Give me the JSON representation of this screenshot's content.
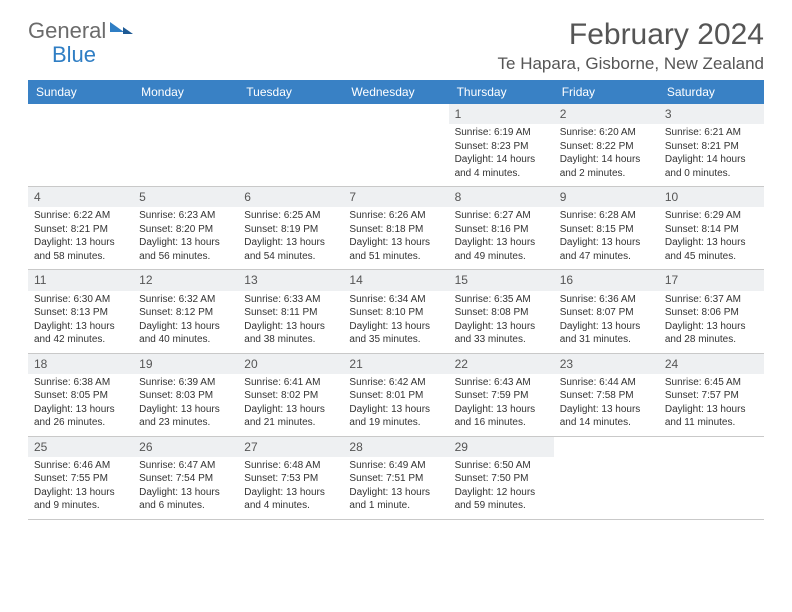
{
  "logo": {
    "first": "General",
    "second": "Blue"
  },
  "title": "February 2024",
  "location": "Te Hapara, Gisborne, New Zealand",
  "weekdays": [
    "Sunday",
    "Monday",
    "Tuesday",
    "Wednesday",
    "Thursday",
    "Friday",
    "Saturday"
  ],
  "colors": {
    "header_bg": "#3981c5",
    "header_text": "#ffffff",
    "daynum_bg": "#eef0f2",
    "border": "#c9c9c9",
    "logo_gray": "#6b6b6b",
    "logo_blue": "#2f7ec4"
  },
  "cells": [
    {
      "empty": true
    },
    {
      "empty": true
    },
    {
      "empty": true
    },
    {
      "empty": true
    },
    {
      "day": "1",
      "sunrise": "Sunrise: 6:19 AM",
      "sunset": "Sunset: 8:23 PM",
      "daylight": "Daylight: 14 hours and 4 minutes."
    },
    {
      "day": "2",
      "sunrise": "Sunrise: 6:20 AM",
      "sunset": "Sunset: 8:22 PM",
      "daylight": "Daylight: 14 hours and 2 minutes."
    },
    {
      "day": "3",
      "sunrise": "Sunrise: 6:21 AM",
      "sunset": "Sunset: 8:21 PM",
      "daylight": "Daylight: 14 hours and 0 minutes."
    },
    {
      "day": "4",
      "sunrise": "Sunrise: 6:22 AM",
      "sunset": "Sunset: 8:21 PM",
      "daylight": "Daylight: 13 hours and 58 minutes."
    },
    {
      "day": "5",
      "sunrise": "Sunrise: 6:23 AM",
      "sunset": "Sunset: 8:20 PM",
      "daylight": "Daylight: 13 hours and 56 minutes."
    },
    {
      "day": "6",
      "sunrise": "Sunrise: 6:25 AM",
      "sunset": "Sunset: 8:19 PM",
      "daylight": "Daylight: 13 hours and 54 minutes."
    },
    {
      "day": "7",
      "sunrise": "Sunrise: 6:26 AM",
      "sunset": "Sunset: 8:18 PM",
      "daylight": "Daylight: 13 hours and 51 minutes."
    },
    {
      "day": "8",
      "sunrise": "Sunrise: 6:27 AM",
      "sunset": "Sunset: 8:16 PM",
      "daylight": "Daylight: 13 hours and 49 minutes."
    },
    {
      "day": "9",
      "sunrise": "Sunrise: 6:28 AM",
      "sunset": "Sunset: 8:15 PM",
      "daylight": "Daylight: 13 hours and 47 minutes."
    },
    {
      "day": "10",
      "sunrise": "Sunrise: 6:29 AM",
      "sunset": "Sunset: 8:14 PM",
      "daylight": "Daylight: 13 hours and 45 minutes."
    },
    {
      "day": "11",
      "sunrise": "Sunrise: 6:30 AM",
      "sunset": "Sunset: 8:13 PM",
      "daylight": "Daylight: 13 hours and 42 minutes."
    },
    {
      "day": "12",
      "sunrise": "Sunrise: 6:32 AM",
      "sunset": "Sunset: 8:12 PM",
      "daylight": "Daylight: 13 hours and 40 minutes."
    },
    {
      "day": "13",
      "sunrise": "Sunrise: 6:33 AM",
      "sunset": "Sunset: 8:11 PM",
      "daylight": "Daylight: 13 hours and 38 minutes."
    },
    {
      "day": "14",
      "sunrise": "Sunrise: 6:34 AM",
      "sunset": "Sunset: 8:10 PM",
      "daylight": "Daylight: 13 hours and 35 minutes."
    },
    {
      "day": "15",
      "sunrise": "Sunrise: 6:35 AM",
      "sunset": "Sunset: 8:08 PM",
      "daylight": "Daylight: 13 hours and 33 minutes."
    },
    {
      "day": "16",
      "sunrise": "Sunrise: 6:36 AM",
      "sunset": "Sunset: 8:07 PM",
      "daylight": "Daylight: 13 hours and 31 minutes."
    },
    {
      "day": "17",
      "sunrise": "Sunrise: 6:37 AM",
      "sunset": "Sunset: 8:06 PM",
      "daylight": "Daylight: 13 hours and 28 minutes."
    },
    {
      "day": "18",
      "sunrise": "Sunrise: 6:38 AM",
      "sunset": "Sunset: 8:05 PM",
      "daylight": "Daylight: 13 hours and 26 minutes."
    },
    {
      "day": "19",
      "sunrise": "Sunrise: 6:39 AM",
      "sunset": "Sunset: 8:03 PM",
      "daylight": "Daylight: 13 hours and 23 minutes."
    },
    {
      "day": "20",
      "sunrise": "Sunrise: 6:41 AM",
      "sunset": "Sunset: 8:02 PM",
      "daylight": "Daylight: 13 hours and 21 minutes."
    },
    {
      "day": "21",
      "sunrise": "Sunrise: 6:42 AM",
      "sunset": "Sunset: 8:01 PM",
      "daylight": "Daylight: 13 hours and 19 minutes."
    },
    {
      "day": "22",
      "sunrise": "Sunrise: 6:43 AM",
      "sunset": "Sunset: 7:59 PM",
      "daylight": "Daylight: 13 hours and 16 minutes."
    },
    {
      "day": "23",
      "sunrise": "Sunrise: 6:44 AM",
      "sunset": "Sunset: 7:58 PM",
      "daylight": "Daylight: 13 hours and 14 minutes."
    },
    {
      "day": "24",
      "sunrise": "Sunrise: 6:45 AM",
      "sunset": "Sunset: 7:57 PM",
      "daylight": "Daylight: 13 hours and 11 minutes."
    },
    {
      "day": "25",
      "sunrise": "Sunrise: 6:46 AM",
      "sunset": "Sunset: 7:55 PM",
      "daylight": "Daylight: 13 hours and 9 minutes."
    },
    {
      "day": "26",
      "sunrise": "Sunrise: 6:47 AM",
      "sunset": "Sunset: 7:54 PM",
      "daylight": "Daylight: 13 hours and 6 minutes."
    },
    {
      "day": "27",
      "sunrise": "Sunrise: 6:48 AM",
      "sunset": "Sunset: 7:53 PM",
      "daylight": "Daylight: 13 hours and 4 minutes."
    },
    {
      "day": "28",
      "sunrise": "Sunrise: 6:49 AM",
      "sunset": "Sunset: 7:51 PM",
      "daylight": "Daylight: 13 hours and 1 minute."
    },
    {
      "day": "29",
      "sunrise": "Sunrise: 6:50 AM",
      "sunset": "Sunset: 7:50 PM",
      "daylight": "Daylight: 12 hours and 59 minutes."
    },
    {
      "empty": true
    },
    {
      "empty": true
    }
  ]
}
